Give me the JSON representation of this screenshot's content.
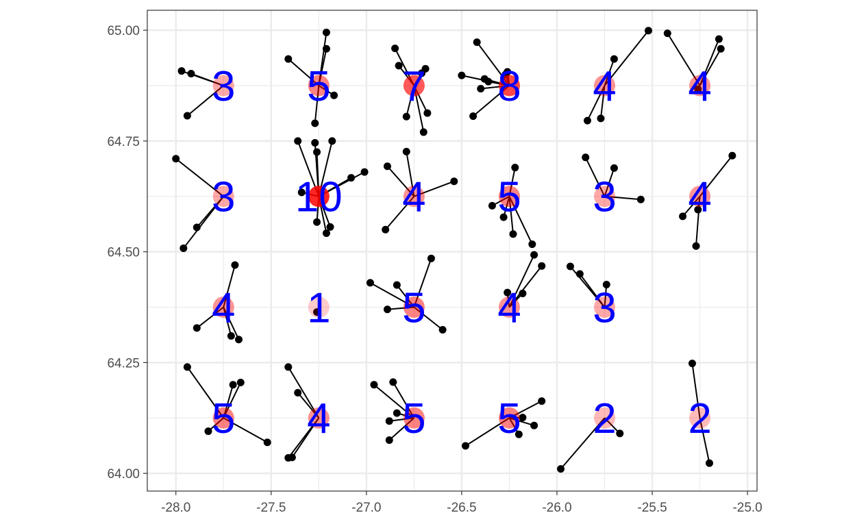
{
  "chart_data": {
    "type": "scatter",
    "title": "",
    "xlabel": "",
    "ylabel": "",
    "xlim": [
      -28.15,
      -24.95
    ],
    "ylim": [
      63.96,
      65.045
    ],
    "x_ticks": [
      -28.0,
      -27.5,
      -27.0,
      -26.5,
      -26.0,
      -25.5,
      -25.0
    ],
    "x_tick_labels": [
      "-28.0",
      "-27.5",
      "-27.0",
      "-26.5",
      "-26.0",
      "-25.5",
      "-25.0"
    ],
    "y_ticks": [
      64.0,
      64.25,
      64.5,
      64.75,
      65.0
    ],
    "y_tick_labels": [
      "64.00",
      "64.25",
      "64.50",
      "64.75",
      "65.00"
    ],
    "grid": true,
    "legend": "none",
    "colors": {
      "grid": "#ebebeb",
      "points": "#000000",
      "segments": "#000000",
      "centroid": "#ff0000",
      "count_label": "#0000ff",
      "axis_text": "#4d4d4d",
      "frame": "#333333"
    },
    "bins": [
      {
        "cx": -27.75,
        "cy": 64.875,
        "n": "3",
        "pts": [
          [
            -27.97,
            64.908
          ],
          [
            -27.92,
            64.902
          ],
          [
            -27.94,
            64.807
          ]
        ]
      },
      {
        "cx": -27.25,
        "cy": 64.875,
        "n": "5",
        "pts": [
          [
            -27.41,
            64.935
          ],
          [
            -27.21,
            64.995
          ],
          [
            -27.21,
            64.958
          ],
          [
            -27.17,
            64.853
          ],
          [
            -27.27,
            64.79
          ]
        ]
      },
      {
        "cx": -26.75,
        "cy": 64.875,
        "n": "7",
        "pts": [
          [
            -26.85,
            64.959
          ],
          [
            -26.83,
            64.92
          ],
          [
            -26.69,
            64.913
          ],
          [
            -26.71,
            64.903
          ],
          [
            -26.68,
            64.813
          ],
          [
            -26.79,
            64.805
          ],
          [
            -26.7,
            64.77
          ]
        ]
      },
      {
        "cx": -26.25,
        "cy": 64.875,
        "n": "8",
        "pts": [
          [
            -26.42,
            64.973
          ],
          [
            -26.5,
            64.898
          ],
          [
            -26.38,
            64.89
          ],
          [
            -26.36,
            64.884
          ],
          [
            -26.26,
            64.906
          ],
          [
            -26.27,
            64.9
          ],
          [
            -26.4,
            64.868
          ],
          [
            -26.44,
            64.806
          ]
        ]
      },
      {
        "cx": -25.75,
        "cy": 64.875,
        "n": "4",
        "pts": [
          [
            -25.52,
            64.999
          ],
          [
            -25.7,
            64.935
          ],
          [
            -25.84,
            64.796
          ],
          [
            -25.77,
            64.801
          ]
        ]
      },
      {
        "cx": -25.25,
        "cy": 64.875,
        "n": "4",
        "pts": [
          [
            -25.42,
            64.993
          ],
          [
            -25.15,
            64.98
          ],
          [
            -25.14,
            64.958
          ],
          [
            -25.26,
            64.867
          ]
        ]
      },
      {
        "cx": -27.75,
        "cy": 64.625,
        "n": "3",
        "pts": [
          [
            -28.0,
            64.71
          ],
          [
            -27.89,
            64.555
          ],
          [
            -27.96,
            64.508
          ]
        ]
      },
      {
        "cx": -27.25,
        "cy": 64.625,
        "n": "10",
        "pts": [
          [
            -27.36,
            64.75
          ],
          [
            -27.27,
            64.746
          ],
          [
            -27.18,
            64.75
          ],
          [
            -27.26,
            64.725
          ],
          [
            -27.01,
            64.68
          ],
          [
            -27.08,
            64.667
          ],
          [
            -27.34,
            64.634
          ],
          [
            -27.26,
            64.567
          ],
          [
            -27.19,
            64.556
          ],
          [
            -27.21,
            64.542
          ]
        ]
      },
      {
        "cx": -26.75,
        "cy": 64.625,
        "n": "4",
        "pts": [
          [
            -26.79,
            64.726
          ],
          [
            -26.89,
            64.693
          ],
          [
            -26.54,
            64.659
          ],
          [
            -26.9,
            64.55
          ]
        ]
      },
      {
        "cx": -26.25,
        "cy": 64.625,
        "n": "5",
        "pts": [
          [
            -26.22,
            64.69
          ],
          [
            -26.34,
            64.604
          ],
          [
            -26.28,
            64.578
          ],
          [
            -26.23,
            64.54
          ],
          [
            -26.13,
            64.517
          ]
        ]
      },
      {
        "cx": -25.75,
        "cy": 64.625,
        "n": "3",
        "pts": [
          [
            -25.85,
            64.713
          ],
          [
            -25.7,
            64.689
          ],
          [
            -25.56,
            64.618
          ]
        ]
      },
      {
        "cx": -25.25,
        "cy": 64.625,
        "n": "4",
        "pts": [
          [
            -25.08,
            64.717
          ],
          [
            -25.34,
            64.58
          ],
          [
            -25.26,
            64.595
          ],
          [
            -25.27,
            64.513
          ]
        ]
      },
      {
        "cx": -27.75,
        "cy": 64.375,
        "n": "4",
        "pts": [
          [
            -27.69,
            64.47
          ],
          [
            -27.89,
            64.328
          ],
          [
            -27.71,
            64.31
          ],
          [
            -27.67,
            64.302
          ]
        ]
      },
      {
        "cx": -27.25,
        "cy": 64.375,
        "n": "1",
        "pts": [
          [
            -27.26,
            64.364
          ]
        ]
      },
      {
        "cx": -26.75,
        "cy": 64.375,
        "n": "5",
        "pts": [
          [
            -26.98,
            64.43
          ],
          [
            -26.84,
            64.425
          ],
          [
            -26.66,
            64.485
          ],
          [
            -26.89,
            64.37
          ],
          [
            -26.6,
            64.324
          ]
        ]
      },
      {
        "cx": -26.25,
        "cy": 64.375,
        "n": "4",
        "pts": [
          [
            -26.12,
            64.493
          ],
          [
            -26.08,
            64.468
          ],
          [
            -26.26,
            64.408
          ],
          [
            -26.18,
            64.406
          ]
        ]
      },
      {
        "cx": -25.75,
        "cy": 64.375,
        "n": "3",
        "pts": [
          [
            -25.93,
            64.467
          ],
          [
            -25.88,
            64.45
          ],
          [
            -25.74,
            64.426
          ]
        ]
      },
      {
        "cx": -27.75,
        "cy": 64.125,
        "n": "5",
        "pts": [
          [
            -27.94,
            64.24
          ],
          [
            -27.7,
            64.2
          ],
          [
            -27.66,
            64.205
          ],
          [
            -27.83,
            64.095
          ],
          [
            -27.52,
            64.07
          ]
        ]
      },
      {
        "cx": -27.25,
        "cy": 64.125,
        "n": "4",
        "pts": [
          [
            -27.41,
            64.24
          ],
          [
            -27.36,
            64.182
          ],
          [
            -27.41,
            64.035
          ],
          [
            -27.39,
            64.036
          ]
        ]
      },
      {
        "cx": -26.75,
        "cy": 64.125,
        "n": "5",
        "pts": [
          [
            -26.96,
            64.2
          ],
          [
            -26.86,
            64.206
          ],
          [
            -26.84,
            64.136
          ],
          [
            -26.88,
            64.118
          ],
          [
            -26.88,
            64.075
          ]
        ]
      },
      {
        "cx": -26.25,
        "cy": 64.125,
        "n": "5",
        "pts": [
          [
            -26.08,
            64.163
          ],
          [
            -26.18,
            64.126
          ],
          [
            -26.12,
            64.108
          ],
          [
            -26.2,
            64.088
          ],
          [
            -26.48,
            64.062
          ]
        ]
      },
      {
        "cx": -25.75,
        "cy": 64.125,
        "n": "2",
        "pts": [
          [
            -25.67,
            64.09
          ],
          [
            -25.98,
            64.01
          ]
        ]
      },
      {
        "cx": -25.25,
        "cy": 64.125,
        "n": "2",
        "pts": [
          [
            -25.29,
            64.248
          ],
          [
            -25.2,
            64.023
          ]
        ]
      }
    ]
  }
}
